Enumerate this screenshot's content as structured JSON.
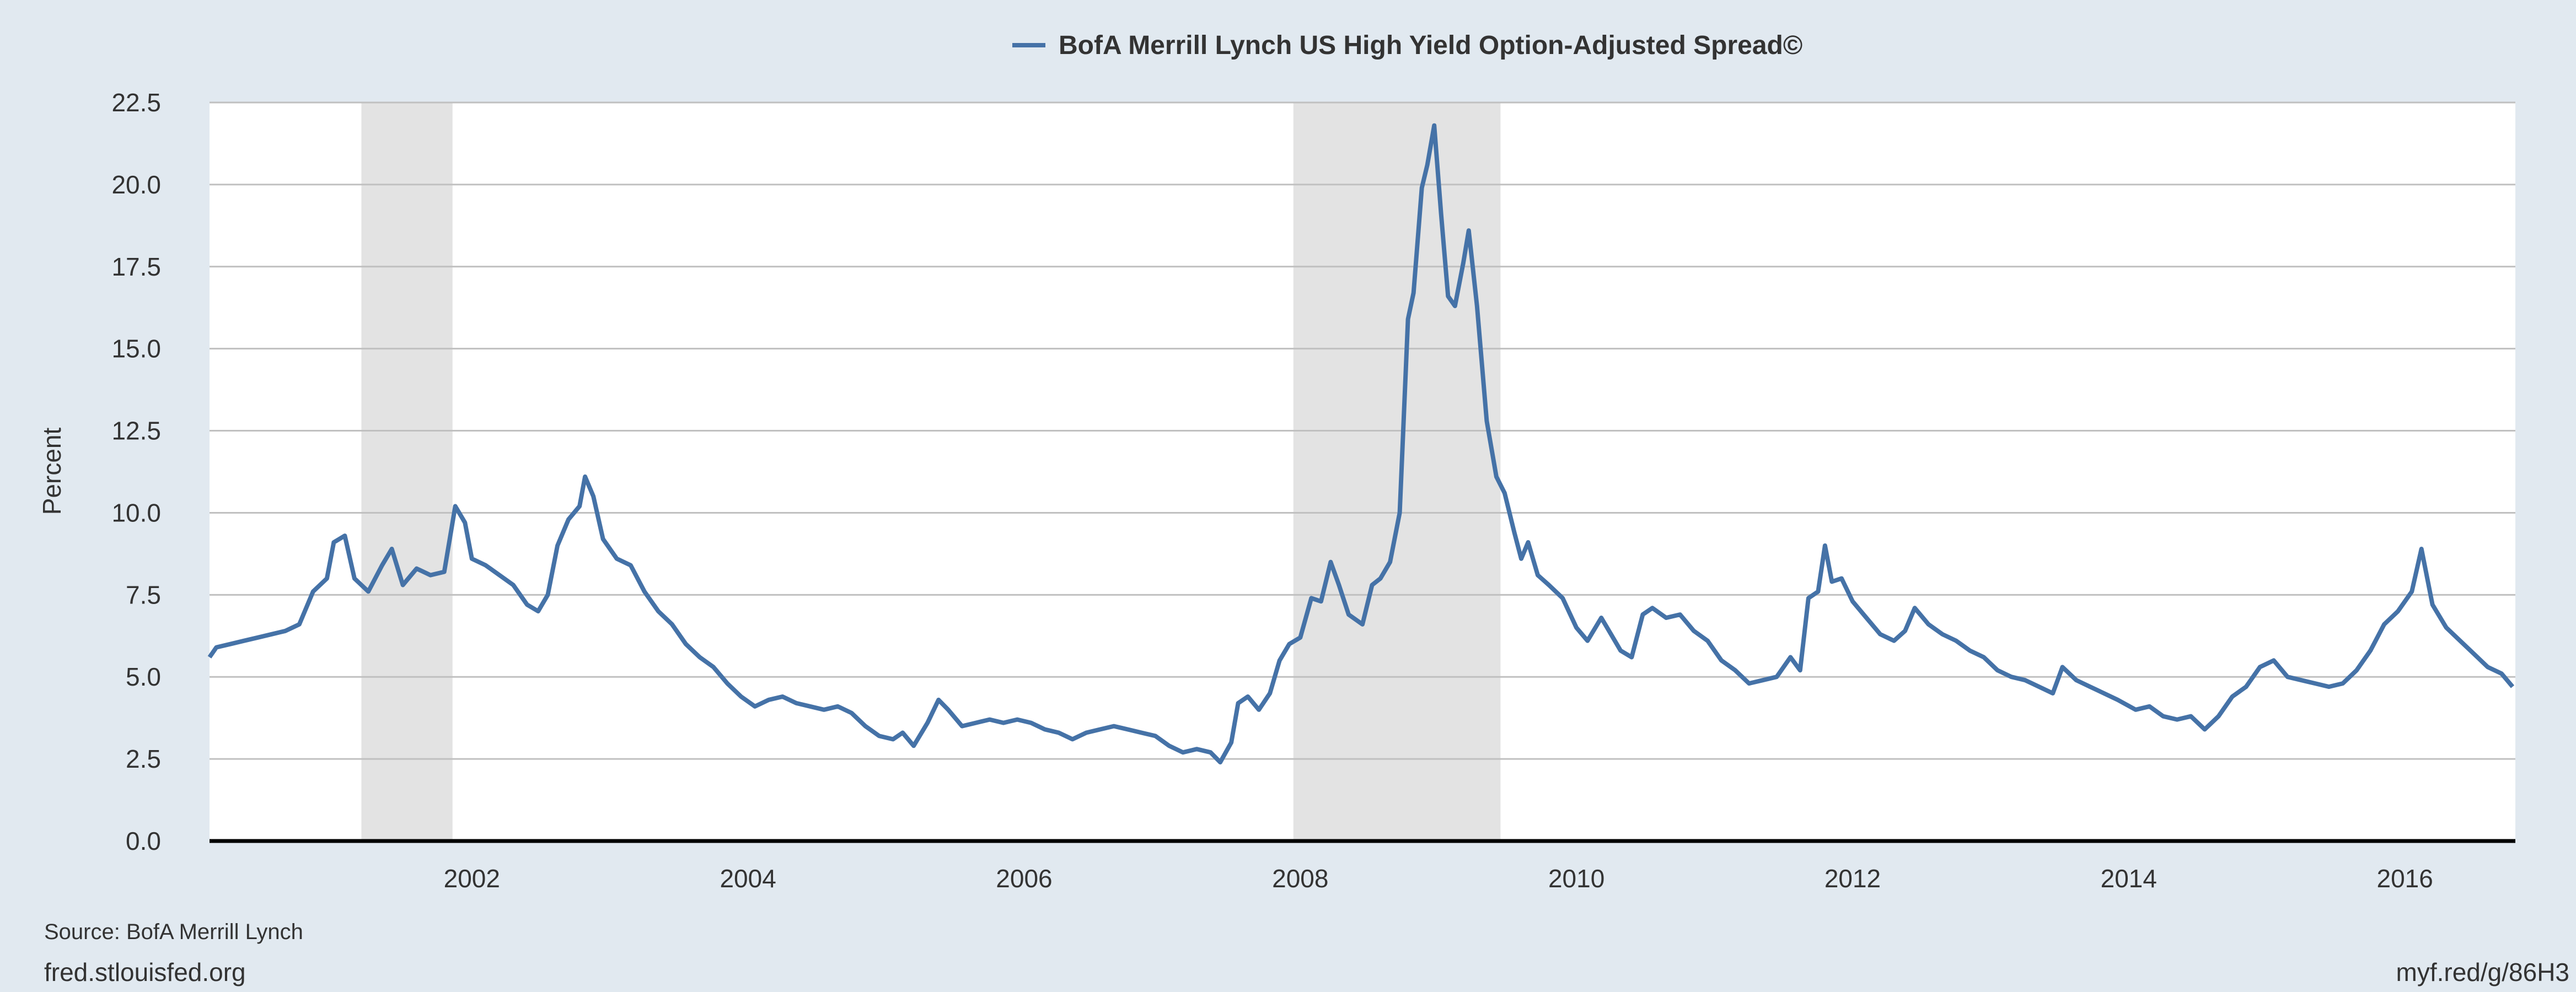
{
  "chart_data": {
    "type": "line",
    "title": "",
    "ylabel": "Percent",
    "xlabel": "",
    "xlim": [
      2000.1,
      2016.8
    ],
    "ylim": [
      0,
      22.5
    ],
    "yticks": [
      "0.0",
      "2.5",
      "5.0",
      "7.5",
      "10.0",
      "12.5",
      "15.0",
      "17.5",
      "20.0",
      "22.5"
    ],
    "xticks": [
      "2002",
      "2004",
      "2006",
      "2008",
      "2010",
      "2012",
      "2014",
      "2016"
    ],
    "grid": true,
    "legend_position": "top-center",
    "series": [
      {
        "name": "BofA Merrill Lynch US High Yield Option-Adjusted Spread©",
        "color": "#4572a7",
        "points": [
          [
            2000.1,
            5.6
          ],
          [
            2000.15,
            5.9
          ],
          [
            2000.25,
            6.0
          ],
          [
            2000.35,
            6.1
          ],
          [
            2000.45,
            6.2
          ],
          [
            2000.55,
            6.3
          ],
          [
            2000.65,
            6.4
          ],
          [
            2000.75,
            6.6
          ],
          [
            2000.85,
            7.6
          ],
          [
            2000.95,
            8.0
          ],
          [
            2001.0,
            9.1
          ],
          [
            2001.08,
            9.3
          ],
          [
            2001.15,
            8.0
          ],
          [
            2001.25,
            7.6
          ],
          [
            2001.35,
            8.4
          ],
          [
            2001.42,
            8.9
          ],
          [
            2001.5,
            7.8
          ],
          [
            2001.6,
            8.3
          ],
          [
            2001.7,
            8.1
          ],
          [
            2001.8,
            8.2
          ],
          [
            2001.88,
            10.2
          ],
          [
            2001.95,
            9.7
          ],
          [
            2002.0,
            8.6
          ],
          [
            2002.1,
            8.4
          ],
          [
            2002.2,
            8.1
          ],
          [
            2002.3,
            7.8
          ],
          [
            2002.4,
            7.2
          ],
          [
            2002.48,
            7.0
          ],
          [
            2002.55,
            7.5
          ],
          [
            2002.62,
            9.0
          ],
          [
            2002.7,
            9.8
          ],
          [
            2002.78,
            10.2
          ],
          [
            2002.82,
            11.1
          ],
          [
            2002.88,
            10.5
          ],
          [
            2002.95,
            9.2
          ],
          [
            2003.05,
            8.6
          ],
          [
            2003.15,
            8.4
          ],
          [
            2003.25,
            7.6
          ],
          [
            2003.35,
            7.0
          ],
          [
            2003.45,
            6.6
          ],
          [
            2003.55,
            6.0
          ],
          [
            2003.65,
            5.6
          ],
          [
            2003.75,
            5.3
          ],
          [
            2003.85,
            4.8
          ],
          [
            2003.95,
            4.4
          ],
          [
            2004.05,
            4.1
          ],
          [
            2004.15,
            4.3
          ],
          [
            2004.25,
            4.4
          ],
          [
            2004.35,
            4.2
          ],
          [
            2004.45,
            4.1
          ],
          [
            2004.55,
            4.0
          ],
          [
            2004.65,
            4.1
          ],
          [
            2004.75,
            3.9
          ],
          [
            2004.85,
            3.5
          ],
          [
            2004.95,
            3.2
          ],
          [
            2005.05,
            3.1
          ],
          [
            2005.12,
            3.3
          ],
          [
            2005.2,
            2.9
          ],
          [
            2005.3,
            3.6
          ],
          [
            2005.38,
            4.3
          ],
          [
            2005.45,
            4.0
          ],
          [
            2005.55,
            3.5
          ],
          [
            2005.65,
            3.6
          ],
          [
            2005.75,
            3.7
          ],
          [
            2005.85,
            3.6
          ],
          [
            2005.95,
            3.7
          ],
          [
            2006.05,
            3.6
          ],
          [
            2006.15,
            3.4
          ],
          [
            2006.25,
            3.3
          ],
          [
            2006.35,
            3.1
          ],
          [
            2006.45,
            3.3
          ],
          [
            2006.55,
            3.4
          ],
          [
            2006.65,
            3.5
          ],
          [
            2006.75,
            3.4
          ],
          [
            2006.85,
            3.3
          ],
          [
            2006.95,
            3.2
          ],
          [
            2007.05,
            2.9
          ],
          [
            2007.15,
            2.7
          ],
          [
            2007.25,
            2.8
          ],
          [
            2007.35,
            2.7
          ],
          [
            2007.42,
            2.4
          ],
          [
            2007.5,
            3.0
          ],
          [
            2007.55,
            4.2
          ],
          [
            2007.62,
            4.4
          ],
          [
            2007.7,
            4.0
          ],
          [
            2007.78,
            4.5
          ],
          [
            2007.85,
            5.5
          ],
          [
            2007.92,
            6.0
          ],
          [
            2008.0,
            6.2
          ],
          [
            2008.08,
            7.4
          ],
          [
            2008.15,
            7.3
          ],
          [
            2008.22,
            8.5
          ],
          [
            2008.28,
            7.8
          ],
          [
            2008.35,
            6.9
          ],
          [
            2008.45,
            6.6
          ],
          [
            2008.52,
            7.8
          ],
          [
            2008.58,
            8.0
          ],
          [
            2008.65,
            8.5
          ],
          [
            2008.72,
            10.0
          ],
          [
            2008.78,
            15.9
          ],
          [
            2008.82,
            16.7
          ],
          [
            2008.88,
            19.9
          ],
          [
            2008.92,
            20.6
          ],
          [
            2008.97,
            21.8
          ],
          [
            2009.02,
            19.1
          ],
          [
            2009.07,
            16.6
          ],
          [
            2009.12,
            16.3
          ],
          [
            2009.18,
            17.6
          ],
          [
            2009.22,
            18.6
          ],
          [
            2009.28,
            16.3
          ],
          [
            2009.35,
            12.8
          ],
          [
            2009.42,
            11.1
          ],
          [
            2009.48,
            10.6
          ],
          [
            2009.55,
            9.4
          ],
          [
            2009.6,
            8.6
          ],
          [
            2009.65,
            9.1
          ],
          [
            2009.72,
            8.1
          ],
          [
            2009.8,
            7.8
          ],
          [
            2009.9,
            7.4
          ],
          [
            2010.0,
            6.5
          ],
          [
            2010.08,
            6.1
          ],
          [
            2010.18,
            6.8
          ],
          [
            2010.25,
            6.3
          ],
          [
            2010.32,
            5.8
          ],
          [
            2010.4,
            5.6
          ],
          [
            2010.48,
            6.9
          ],
          [
            2010.55,
            7.1
          ],
          [
            2010.65,
            6.8
          ],
          [
            2010.75,
            6.9
          ],
          [
            2010.85,
            6.4
          ],
          [
            2010.95,
            6.1
          ],
          [
            2011.05,
            5.5
          ],
          [
            2011.15,
            5.2
          ],
          [
            2011.25,
            4.8
          ],
          [
            2011.35,
            4.9
          ],
          [
            2011.45,
            5.0
          ],
          [
            2011.55,
            5.6
          ],
          [
            2011.62,
            5.2
          ],
          [
            2011.68,
            7.4
          ],
          [
            2011.75,
            7.6
          ],
          [
            2011.8,
            9.0
          ],
          [
            2011.85,
            7.9
          ],
          [
            2011.92,
            8.0
          ],
          [
            2012.0,
            7.3
          ],
          [
            2012.1,
            6.8
          ],
          [
            2012.2,
            6.3
          ],
          [
            2012.3,
            6.1
          ],
          [
            2012.38,
            6.4
          ],
          [
            2012.45,
            7.1
          ],
          [
            2012.55,
            6.6
          ],
          [
            2012.65,
            6.3
          ],
          [
            2012.75,
            6.1
          ],
          [
            2012.85,
            5.8
          ],
          [
            2012.95,
            5.6
          ],
          [
            2013.05,
            5.2
          ],
          [
            2013.15,
            5.0
          ],
          [
            2013.25,
            4.9
          ],
          [
            2013.35,
            4.7
          ],
          [
            2013.45,
            4.5
          ],
          [
            2013.52,
            5.3
          ],
          [
            2013.62,
            4.9
          ],
          [
            2013.72,
            4.7
          ],
          [
            2013.82,
            4.5
          ],
          [
            2013.92,
            4.3
          ],
          [
            2014.05,
            4.0
          ],
          [
            2014.15,
            4.1
          ],
          [
            2014.25,
            3.8
          ],
          [
            2014.35,
            3.7
          ],
          [
            2014.45,
            3.8
          ],
          [
            2014.55,
            3.4
          ],
          [
            2014.65,
            3.8
          ],
          [
            2014.75,
            4.4
          ],
          [
            2014.85,
            4.7
          ],
          [
            2014.95,
            5.3
          ],
          [
            2015.05,
            5.5
          ],
          [
            2015.15,
            5.0
          ],
          [
            2015.25,
            4.9
          ],
          [
            2015.35,
            4.8
          ],
          [
            2015.45,
            4.7
          ],
          [
            2015.55,
            4.8
          ],
          [
            2015.65,
            5.2
          ],
          [
            2015.75,
            5.8
          ],
          [
            2015.85,
            6.6
          ],
          [
            2015.95,
            7.0
          ],
          [
            2016.05,
            7.6
          ],
          [
            2016.12,
            8.9
          ],
          [
            2016.2,
            7.2
          ],
          [
            2016.3,
            6.5
          ],
          [
            2016.4,
            6.1
          ],
          [
            2016.5,
            5.7
          ],
          [
            2016.6,
            5.3
          ],
          [
            2016.7,
            5.1
          ],
          [
            2016.78,
            4.7
          ]
        ]
      }
    ],
    "recessions": [
      {
        "start": 2001.2,
        "end": 2001.86
      },
      {
        "start": 2007.95,
        "end": 2009.45
      }
    ]
  },
  "footer": {
    "source": "Source: BofA Merrill Lynch",
    "site": "fred.stlouisfed.org",
    "short_link": "myf.red/g/86H3"
  },
  "colors": {
    "background": "#e1e9f0",
    "plot_background": "#ffffff",
    "line": "#4572a7",
    "recession_shade": "#e3e3e3",
    "grid": "#c0c0c0",
    "axis": "#000000"
  }
}
